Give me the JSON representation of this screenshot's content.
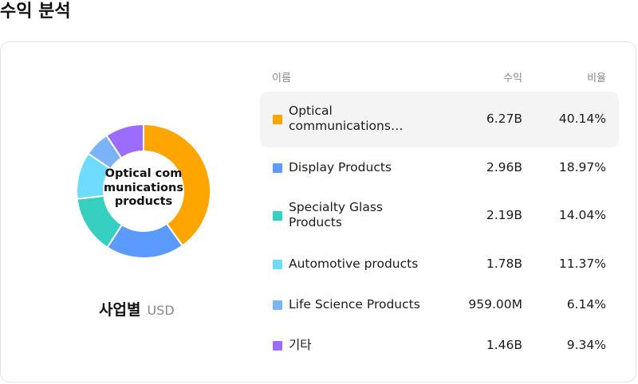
{
  "page": {
    "title": "수익 분석"
  },
  "summary": {
    "center_label": "Optical communications products",
    "caption": "사업별",
    "unit": "USD"
  },
  "table": {
    "headers": {
      "name": "이름",
      "revenue": "수익",
      "ratio": "비율"
    },
    "rows": [
      {
        "name": "Optical communications products",
        "revenue": "6.27B",
        "ratio": "40.14%",
        "color": "#FFA500",
        "highlighted": true
      },
      {
        "name": "Display Products",
        "revenue": "2.96B",
        "ratio": "18.97%",
        "color": "#5B9BFF",
        "highlighted": false
      },
      {
        "name": "Specialty Glass Products",
        "revenue": "2.19B",
        "ratio": "14.04%",
        "color": "#36CFC0",
        "highlighted": false
      },
      {
        "name": "Automotive products",
        "revenue": "1.78B",
        "ratio": "11.37%",
        "color": "#6FDBFF",
        "highlighted": false
      },
      {
        "name": "Life Science Products",
        "revenue": "959.00M",
        "ratio": "6.14%",
        "color": "#7BB3F7",
        "highlighted": false
      },
      {
        "name": "기타",
        "revenue": "1.46B",
        "ratio": "9.34%",
        "color": "#9B6CFF",
        "highlighted": false
      }
    ]
  },
  "chart_data": {
    "type": "pie",
    "categories": [
      "Optical communications products",
      "Display Products",
      "Specialty Glass Products",
      "Automotive products",
      "Life Science Products",
      "기타"
    ],
    "values": [
      40.14,
      18.97,
      14.04,
      11.37,
      6.14,
      9.34
    ],
    "colors": [
      "#FFA500",
      "#5B9BFF",
      "#36CFC0",
      "#6FDBFF",
      "#7BB3F7",
      "#9B6CFF"
    ]
  }
}
